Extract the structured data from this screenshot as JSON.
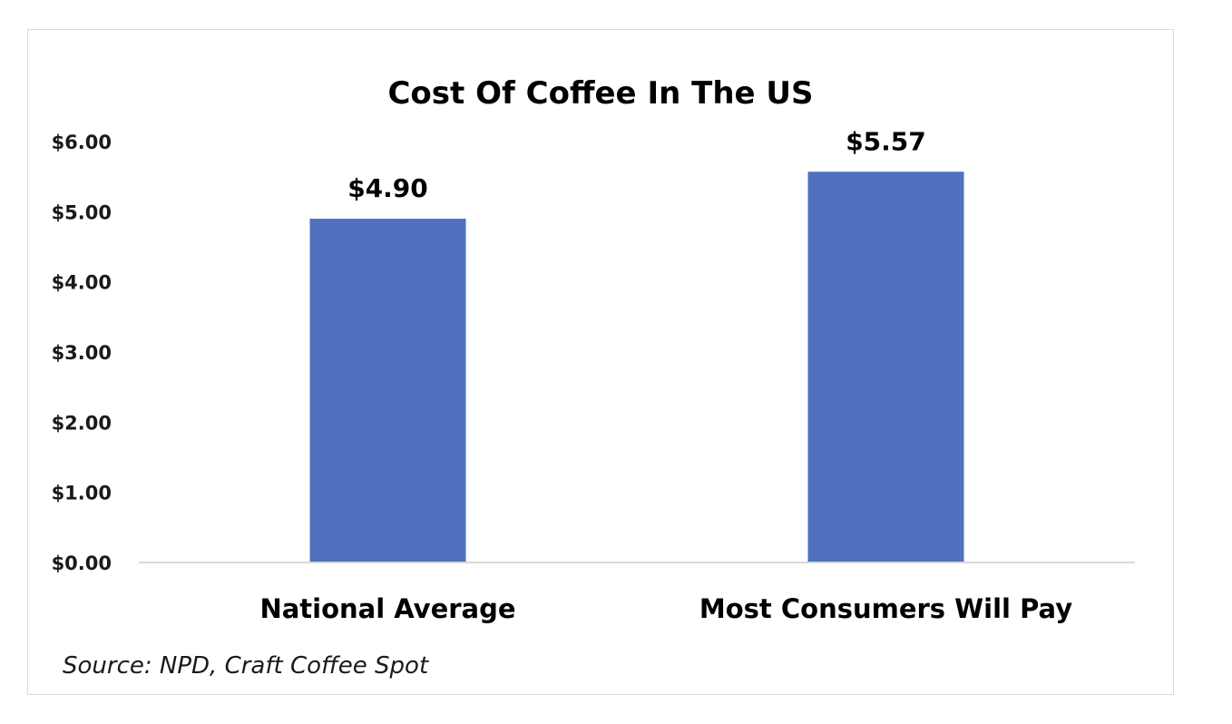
{
  "chart_data": {
    "type": "bar",
    "title": "Cost Of Coffee In The US",
    "categories": [
      "National Average",
      "Most Consumers Will Pay"
    ],
    "values": [
      4.9,
      5.57
    ],
    "data_labels": [
      "$4.90",
      "$5.57"
    ],
    "yticks": [
      {
        "value": 0,
        "label": "$0.00"
      },
      {
        "value": 1,
        "label": "$1.00"
      },
      {
        "value": 2,
        "label": "$2.00"
      },
      {
        "value": 3,
        "label": "$3.00"
      },
      {
        "value": 4,
        "label": "$4.00"
      },
      {
        "value": 5,
        "label": "$5.00"
      },
      {
        "value": 6,
        "label": "$6.00"
      }
    ],
    "ylim": [
      0,
      6
    ],
    "xlabel": "",
    "ylabel": "",
    "grid": false,
    "legend": "none",
    "bar_color": "#4f71be",
    "axis_color": "#d9d9d9"
  },
  "source_note": "Source: NPD, Craft Coffee Spot"
}
